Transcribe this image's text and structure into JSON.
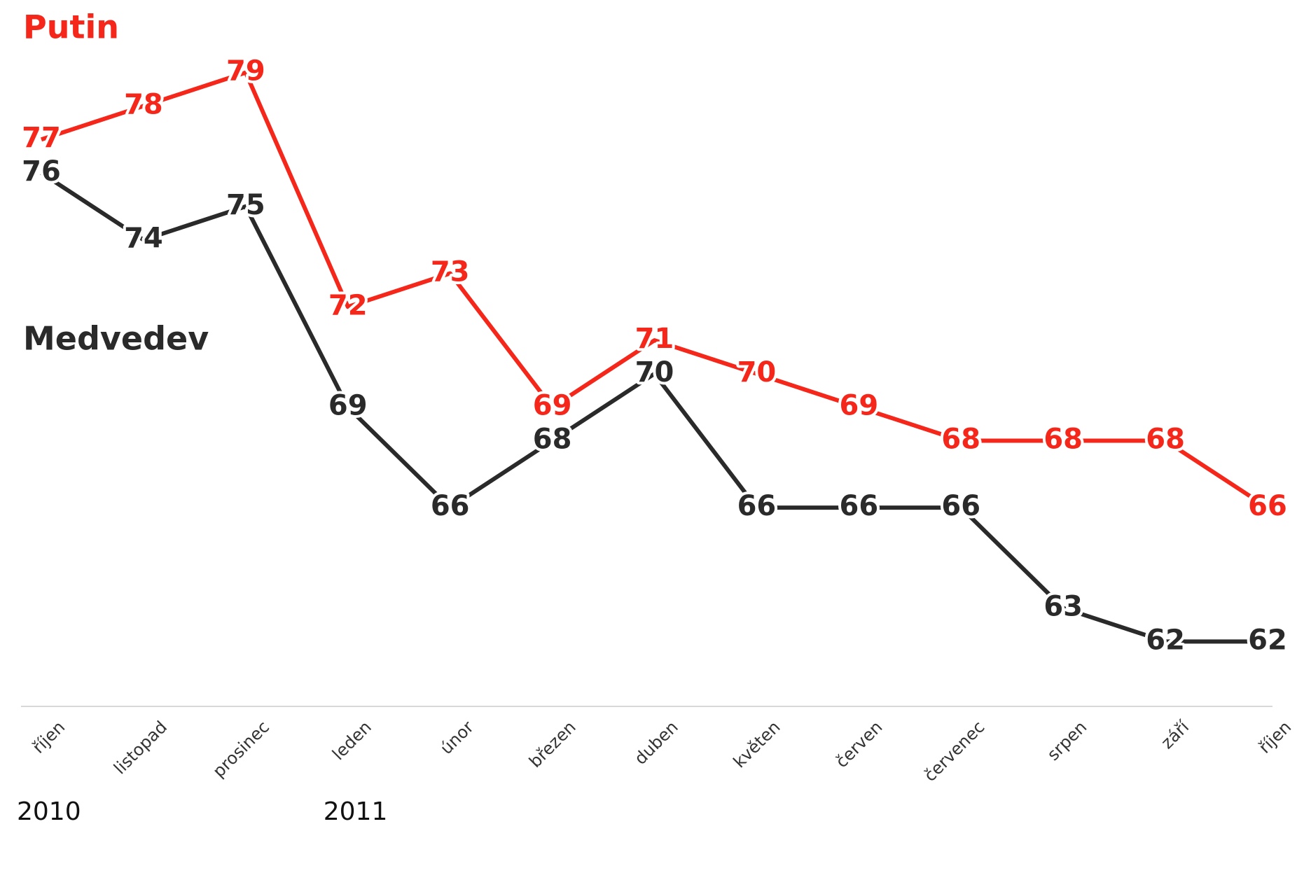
{
  "chart_data": {
    "type": "line",
    "categories": [
      "říjen",
      "listopad",
      "prosinec",
      "leden",
      "únor",
      "březen",
      "duben",
      "květen",
      "červen",
      "červenec",
      "srpen",
      "září",
      "říjen"
    ],
    "years": [
      "2010",
      null,
      null,
      "2011",
      null,
      null,
      null,
      null,
      null,
      null,
      null,
      null,
      null
    ],
    "series": [
      {
        "name": "Putin",
        "color": "#f5261a",
        "values": [
          77,
          78,
          79,
          72,
          73,
          69,
          71,
          70,
          69,
          68,
          68,
          68,
          66
        ]
      },
      {
        "name": "Medvedev",
        "color": "#2a2a2a",
        "values": [
          76,
          74,
          75,
          69,
          66,
          68,
          70,
          66,
          66,
          66,
          63,
          62,
          62
        ]
      }
    ],
    "ylim": [
      60,
      81
    ]
  }
}
